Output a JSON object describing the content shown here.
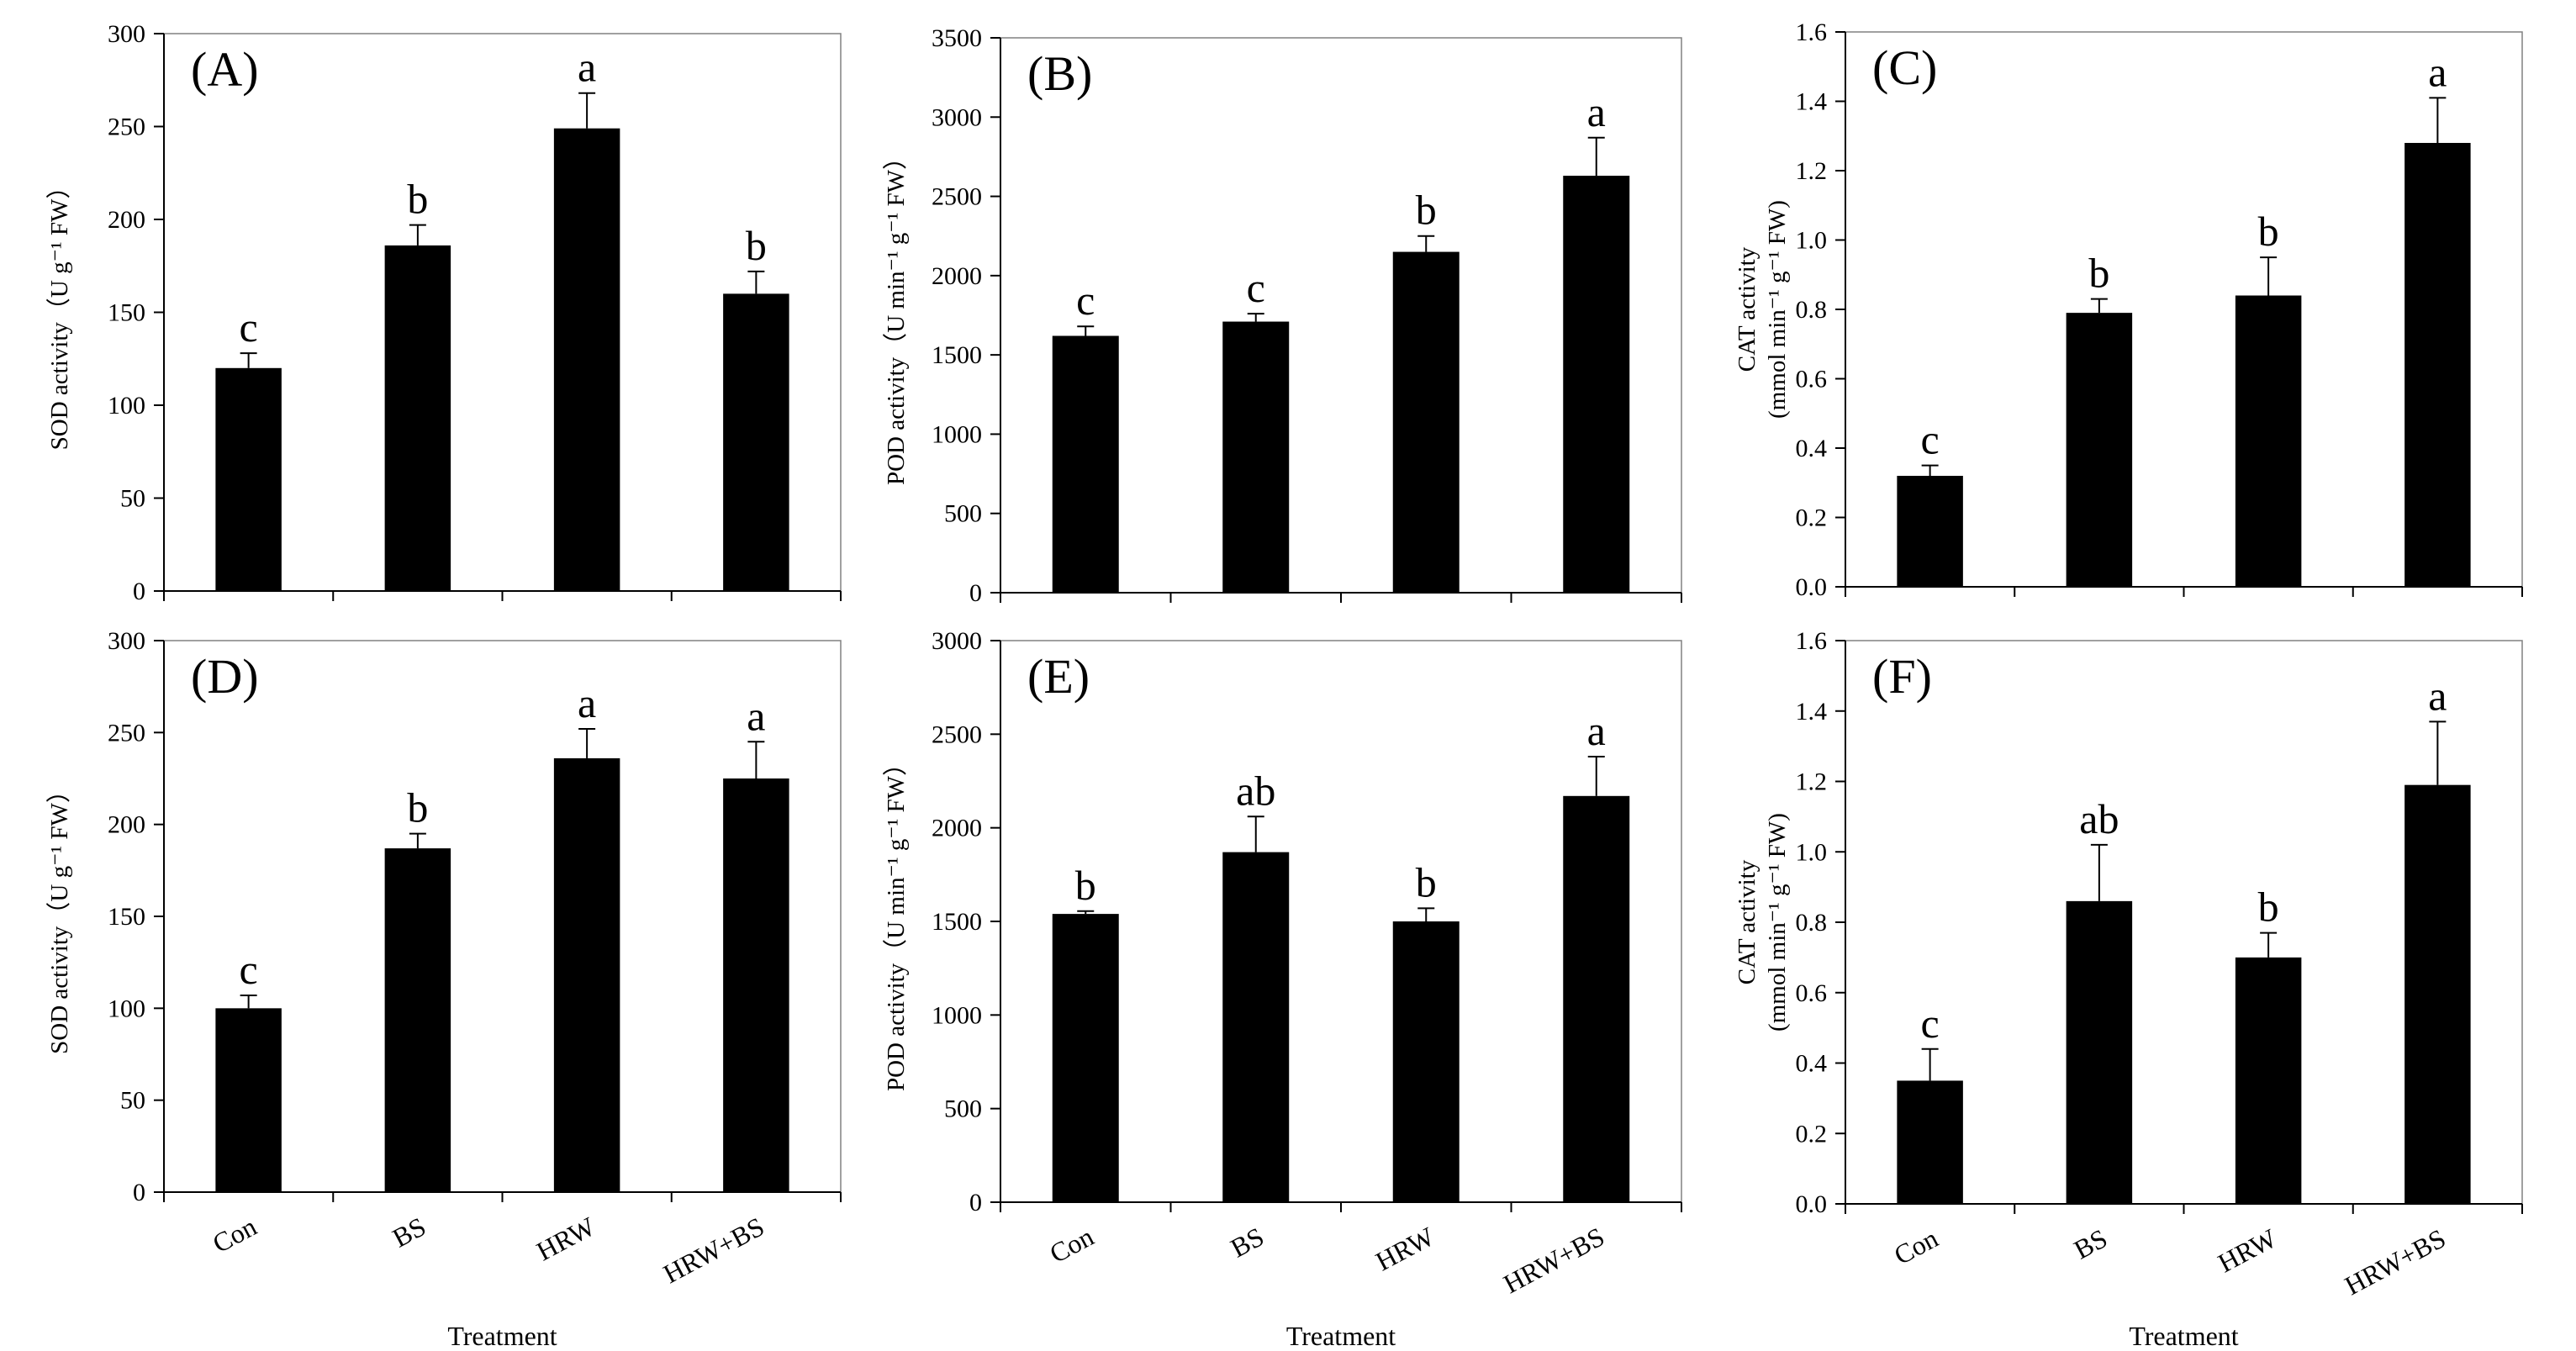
{
  "chart_data": [
    {
      "type": "bar",
      "panel": "(A)",
      "categories": [
        "Con",
        "BS",
        "HRW",
        "HRW+BS"
      ],
      "values": [
        120,
        186,
        249,
        160
      ],
      "errors": [
        8,
        11,
        19,
        12
      ],
      "significance": [
        "c",
        "b",
        "a",
        "b"
      ],
      "ylabel_lines": [
        "SOD activity（U g⁻¹ FW）"
      ],
      "xlabel": "",
      "ylim": [
        0,
        300
      ],
      "yticks": [
        "0",
        "50",
        "100",
        "150",
        "200",
        "250",
        "300"
      ],
      "show_categories": false,
      "bar_color": "#000000",
      "grid": false
    },
    {
      "type": "bar",
      "panel": "(B)",
      "categories": [
        "Con",
        "BS",
        "HRW",
        "HRW+BS"
      ],
      "values": [
        1620,
        1710,
        2150,
        2630
      ],
      "errors": [
        60,
        50,
        100,
        240
      ],
      "significance": [
        "c",
        "c",
        "b",
        "a"
      ],
      "ylabel_lines": [
        "POD activity（U min⁻¹ g⁻¹ FW）"
      ],
      "xlabel": "",
      "ylim": [
        0,
        3500
      ],
      "yticks": [
        "0",
        "500",
        "1000",
        "1500",
        "2000",
        "2500",
        "3000",
        "3500"
      ],
      "show_categories": false,
      "bar_color": "#000000",
      "grid": false
    },
    {
      "type": "bar",
      "panel": "(C)",
      "categories": [
        "Con",
        "BS",
        "HRW",
        "HRW+BS"
      ],
      "values": [
        0.32,
        0.79,
        0.84,
        1.28
      ],
      "errors": [
        0.03,
        0.04,
        0.11,
        0.13
      ],
      "significance": [
        "c",
        "b",
        "b",
        "a"
      ],
      "ylabel_lines": [
        "CAT activity",
        "(mmol min⁻¹ g⁻¹ FW)"
      ],
      "xlabel": "",
      "ylim": [
        0,
        1.6
      ],
      "yticks": [
        "0.0",
        "0.2",
        "0.4",
        "0.6",
        "0.8",
        "1.0",
        "1.2",
        "1.4",
        "1.6"
      ],
      "show_categories": false,
      "bar_color": "#000000",
      "grid": false
    },
    {
      "type": "bar",
      "panel": "(D)",
      "categories": [
        "Con",
        "BS",
        "HRW",
        "HRW+BS"
      ],
      "values": [
        100,
        187,
        236,
        225
      ],
      "errors": [
        7,
        8,
        16,
        20
      ],
      "significance": [
        "c",
        "b",
        "a",
        "a"
      ],
      "ylabel_lines": [
        "SOD activity（U g⁻¹ FW）"
      ],
      "xlabel": "Treatment",
      "ylim": [
        0,
        300
      ],
      "yticks": [
        "0",
        "50",
        "100",
        "150",
        "200",
        "250",
        "300"
      ],
      "show_categories": true,
      "bar_color": "#000000",
      "grid": false
    },
    {
      "type": "bar",
      "panel": "(E)",
      "categories": [
        "Con",
        "BS",
        "HRW",
        "HRW+BS"
      ],
      "values": [
        1540,
        1870,
        1500,
        2170
      ],
      "errors": [
        15,
        190,
        70,
        210
      ],
      "significance": [
        "b",
        "ab",
        "b",
        "a"
      ],
      "ylabel_lines": [
        "POD activity（U min⁻¹ g⁻¹ FW）"
      ],
      "xlabel": "Treatment",
      "ylim": [
        0,
        3000
      ],
      "yticks": [
        "0",
        "500",
        "1000",
        "1500",
        "2000",
        "2500",
        "3000"
      ],
      "show_categories": true,
      "bar_color": "#000000",
      "grid": false
    },
    {
      "type": "bar",
      "panel": "(F)",
      "categories": [
        "Con",
        "BS",
        "HRW",
        "HRW+BS"
      ],
      "values": [
        0.35,
        0.86,
        0.7,
        1.19
      ],
      "errors": [
        0.09,
        0.16,
        0.07,
        0.18
      ],
      "significance": [
        "c",
        "ab",
        "b",
        "a"
      ],
      "ylabel_lines": [
        "CAT activity",
        "(mmol min⁻¹ g⁻¹ FW)"
      ],
      "xlabel": "Treatment",
      "ylim": [
        0,
        1.6
      ],
      "yticks": [
        "0.0",
        "0.2",
        "0.4",
        "0.6",
        "0.8",
        "1.0",
        "1.2",
        "1.4",
        "1.6"
      ],
      "show_categories": true,
      "bar_color": "#000000",
      "grid": false
    }
  ]
}
